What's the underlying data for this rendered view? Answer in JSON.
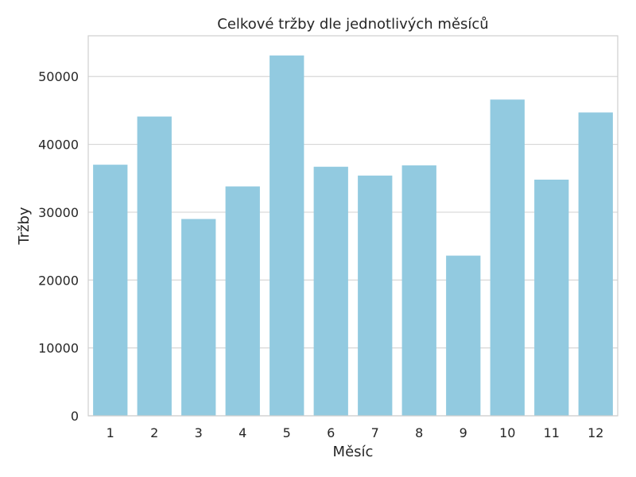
{
  "chart_data": {
    "type": "bar",
    "title": "Celkové tržby dle jednotlivých měsíců",
    "xlabel": "Měsíc",
    "ylabel": "Tržby",
    "categories": [
      "1",
      "2",
      "3",
      "4",
      "5",
      "6",
      "7",
      "8",
      "9",
      "10",
      "11",
      "12"
    ],
    "values": [
      37000,
      44100,
      29000,
      33800,
      53100,
      36700,
      35400,
      36900,
      23600,
      46600,
      34800,
      44700
    ],
    "ylim": [
      0,
      56000
    ],
    "yticks": [
      0,
      10000,
      20000,
      30000,
      40000,
      50000
    ],
    "grid": true,
    "legend": "none",
    "colors": {
      "bar": "#92CAE0",
      "grid": "#D7D7D7",
      "axes": "#CFCFCF",
      "text": "#262626"
    }
  }
}
